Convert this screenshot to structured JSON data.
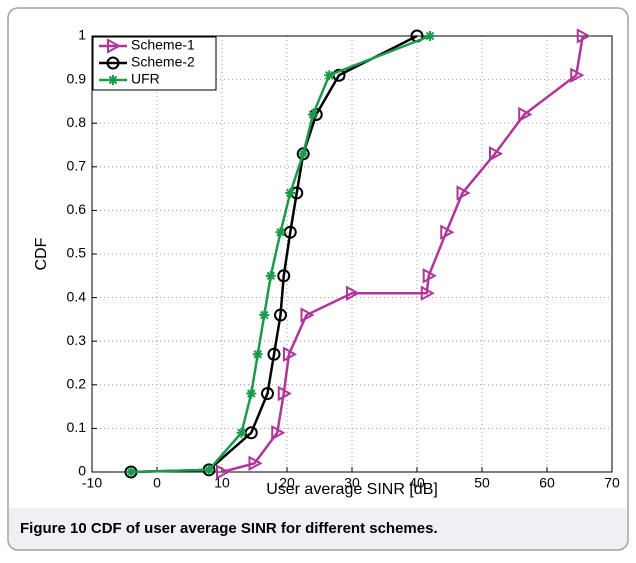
{
  "chart_data": {
    "type": "line",
    "xlabel": "User average SINR [dB]",
    "ylabel": "CDF",
    "caption_label": "Figure 10",
    "caption": "CDF of user average SINR for different schemes.",
    "xlim": [
      -10,
      70
    ],
    "xticks": [
      -10,
      0,
      10,
      20,
      30,
      40,
      50,
      60,
      70
    ],
    "ylim": [
      0,
      1
    ],
    "yticks": [
      0,
      0.1,
      0.2,
      0.3,
      0.4,
      0.5,
      0.6,
      0.7,
      0.8,
      0.9,
      1
    ],
    "grid": true,
    "legend": "upper left",
    "series": [
      {
        "name": "Scheme-1",
        "color": "#b0359a",
        "marker": "triangle",
        "x": [
          10,
          15,
          18.5,
          19.5,
          20.3,
          23,
          30,
          41.5,
          41.8,
          44.5,
          47,
          52,
          56.5,
          64.5,
          65.5
        ],
        "values": [
          0,
          0.02,
          0.09,
          0.18,
          0.27,
          0.36,
          0.41,
          0.41,
          0.45,
          0.55,
          0.64,
          0.73,
          0.82,
          0.91,
          1
        ]
      },
      {
        "name": "Scheme-2",
        "color": "#000000",
        "marker": "circle",
        "x": [
          -4,
          8,
          14.5,
          17,
          18,
          19,
          19.5,
          20.5,
          21.5,
          22.5,
          24.5,
          28,
          40
        ],
        "values": [
          0,
          0.005,
          0.09,
          0.18,
          0.27,
          0.36,
          0.45,
          0.55,
          0.64,
          0.73,
          0.82,
          0.91,
          1
        ]
      },
      {
        "name": "UFR",
        "color": "#1a9a4a",
        "marker": "star",
        "x": [
          -4,
          8,
          13,
          14.5,
          15.5,
          16.5,
          17.5,
          19,
          20.5,
          22.5,
          24,
          26.5,
          42
        ],
        "values": [
          0,
          0.005,
          0.09,
          0.18,
          0.27,
          0.36,
          0.45,
          0.55,
          0.64,
          0.73,
          0.82,
          0.91,
          1
        ]
      }
    ]
  }
}
